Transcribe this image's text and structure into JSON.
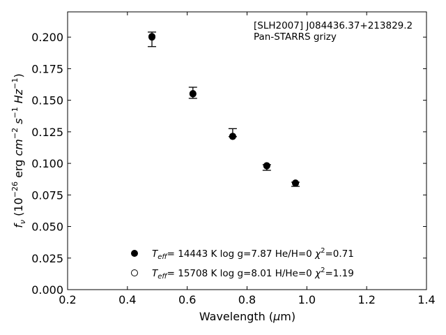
{
  "chart_data": {
    "type": "scatter",
    "title": "",
    "xlabel": "Wavelength (μm)",
    "ylabel": "f_ν (10^-26 erg cm^-2 s^-1 Hz^-1)",
    "xlim": [
      0.2,
      1.4
    ],
    "ylim": [
      0.0,
      0.22
    ],
    "x_ticks": [
      "0.2",
      "0.4",
      "0.6",
      "0.8",
      "1.0",
      "1.2",
      "1.4"
    ],
    "y_ticks": [
      "0.000",
      "0.025",
      "0.050",
      "0.075",
      "0.100",
      "0.125",
      "0.150",
      "0.175",
      "0.200"
    ],
    "grid": false,
    "legend_position": "lower-center",
    "annotation": {
      "line1": "[SLH2007] J084436.37+213829.2",
      "line2": "Pan-STARRS grizy"
    },
    "observed": [
      {
        "x": 0.482,
        "y": 0.1985,
        "err_low": 0.006,
        "err_high": 0.0055
      },
      {
        "x": 0.619,
        "y": 0.1558,
        "err_low": 0.0043,
        "err_high": 0.0045
      },
      {
        "x": 0.752,
        "y": 0.1215,
        "err_low": 0.0003,
        "err_high": 0.006
      },
      {
        "x": 0.866,
        "y": 0.0985,
        "err_low": 0.004,
        "err_high": 0.0005
      },
      {
        "x": 0.962,
        "y": 0.0848,
        "err_low": 0.003,
        "err_high": 0.0003
      }
    ],
    "series": [
      {
        "name": "Teff = 14443 K  log g=7.87  He/H=0  χ2=0.71",
        "marker": "filled-circle",
        "color": "#000000",
        "x": [
          0.482,
          0.619,
          0.752,
          0.866,
          0.962
        ],
        "y": [
          0.2005,
          0.1553,
          0.1215,
          0.0982,
          0.0843
        ]
      },
      {
        "name": "Teff = 15708 K  log g=8.01  H/He=0  χ2=1.19",
        "marker": "open-circle",
        "color": "#000000",
        "x": [
          0.482,
          0.619,
          0.752,
          0.866,
          0.962
        ],
        "y": [
          0.2,
          0.155,
          0.1213,
          0.098,
          0.0845
        ]
      }
    ],
    "legend": [
      {
        "teff": "= 14443 K  log g=7.87  He/H=0  ",
        "chi": "=0.71"
      },
      {
        "teff": "= 15708 K  log g=8.01  H/He=0  ",
        "chi": "=1.19"
      }
    ]
  }
}
